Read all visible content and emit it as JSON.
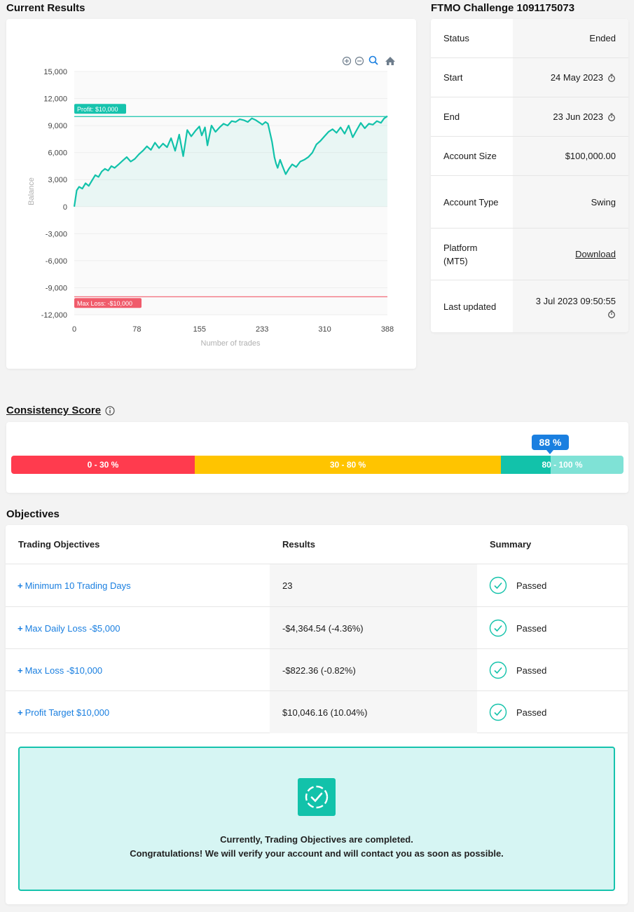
{
  "current_results": {
    "title": "Current Results",
    "zoom_tools": [
      "zoom-in-icon",
      "zoom-out-icon",
      "magnifier-icon",
      "home-icon"
    ]
  },
  "chart_data": {
    "type": "area",
    "ylabel": "Balance",
    "xlabel": "Number of trades",
    "ylim": [
      -12000,
      15000
    ],
    "y_ticks": [
      "15,000",
      "12,000",
      "9,000",
      "6,000",
      "3,000",
      "0",
      "-3,000",
      "-6,000",
      "-9,000",
      "-12,000"
    ],
    "x_ticks": [
      "0",
      "78",
      "155",
      "233",
      "310",
      "388"
    ],
    "xlim": [
      0,
      388
    ],
    "profit_line": {
      "label": "Profit: $10,000",
      "value": 10000,
      "color": "#16c3ad"
    },
    "loss_line": {
      "label": "Max Loss: -$10,000",
      "value": -10000,
      "color": "#f05b6b"
    },
    "series": [
      {
        "color": "#12c2aa",
        "x": [
          0,
          3,
          6,
          10,
          14,
          18,
          22,
          26,
          30,
          34,
          38,
          42,
          46,
          50,
          55,
          60,
          65,
          70,
          75,
          80,
          85,
          90,
          95,
          100,
          105,
          110,
          115,
          120,
          125,
          130,
          135,
          140,
          145,
          150,
          155,
          158,
          162,
          165,
          170,
          175,
          180,
          185,
          190,
          195,
          200,
          205,
          210,
          215,
          220,
          225,
          230,
          233,
          237,
          240,
          243,
          245,
          248,
          250,
          252,
          255,
          258,
          262,
          266,
          270,
          275,
          280,
          285,
          290,
          295,
          300,
          305,
          310,
          315,
          320,
          325,
          330,
          335,
          340,
          345,
          350,
          355,
          360,
          365,
          370,
          375,
          380,
          384,
          388
        ],
        "y": [
          0,
          1800,
          2200,
          2000,
          2600,
          2300,
          2900,
          3500,
          3300,
          3900,
          4200,
          4000,
          4500,
          4300,
          4700,
          5100,
          5500,
          5000,
          5300,
          5800,
          6200,
          6700,
          6300,
          7100,
          6500,
          7000,
          6600,
          7600,
          6200,
          8000,
          5600,
          8500,
          7800,
          8400,
          8900,
          7900,
          8800,
          6800,
          9000,
          8300,
          8800,
          9200,
          9000,
          9500,
          9400,
          9700,
          9600,
          9400,
          9800,
          9600,
          9300,
          9100,
          9400,
          9200,
          8000,
          7200,
          5500,
          4800,
          4300,
          5200,
          4500,
          3600,
          4200,
          4700,
          4400,
          5000,
          5200,
          5500,
          6000,
          6900,
          7300,
          7800,
          8300,
          8600,
          8200,
          8800,
          8100,
          9000,
          7700,
          8500,
          9300,
          8700,
          9200,
          9100,
          9500,
          9300,
          9800,
          10046
        ]
      }
    ]
  },
  "challenge": {
    "title": "FTMO Challenge 1091175073",
    "rows": [
      {
        "label": "Status",
        "value": "Ended"
      },
      {
        "label": "Start",
        "value": "24 May 2023"
      },
      {
        "label": "End",
        "value": "23 Jun 2023"
      },
      {
        "label": "Account Size",
        "value": "$100,000.00"
      },
      {
        "label": "Account Type",
        "value": "Swing"
      },
      {
        "label": "Platform (MT5)",
        "value": "Download"
      },
      {
        "label": "Last updated",
        "value": "3 Jul 2023 09:50:55"
      }
    ]
  },
  "consistency": {
    "title": "Consistency Score",
    "score_label": "88 %",
    "score": 88,
    "segments": [
      {
        "label": "0 - 30 %",
        "color": "#ff3b4e"
      },
      {
        "label": "30 - 80 %",
        "color": "#ffc400"
      },
      {
        "label": "80 - 100 %",
        "color": "#12c2aa"
      }
    ]
  },
  "objectives": {
    "title": "Objectives",
    "headers": [
      "Trading Objectives",
      "Results",
      "Summary"
    ],
    "rows": [
      {
        "name": "Minimum 10 Trading Days",
        "result": "23",
        "summary": "Passed"
      },
      {
        "name": "Max Daily Loss -$5,000",
        "result": "-$4,364.54 (-4.36%)",
        "summary": "Passed"
      },
      {
        "name": "Max Loss -$10,000",
        "result": "-$822.36 (-0.82%)",
        "summary": "Passed"
      },
      {
        "name": "Profit Target $10,000",
        "result": "$10,046.16 (10.04%)",
        "summary": "Passed"
      }
    ],
    "plus_symbol": "+",
    "banner": {
      "line1": "Currently, Trading Objectives are completed.",
      "line2": "Congratulations! We will verify your account and will contact you as soon as possible."
    }
  }
}
